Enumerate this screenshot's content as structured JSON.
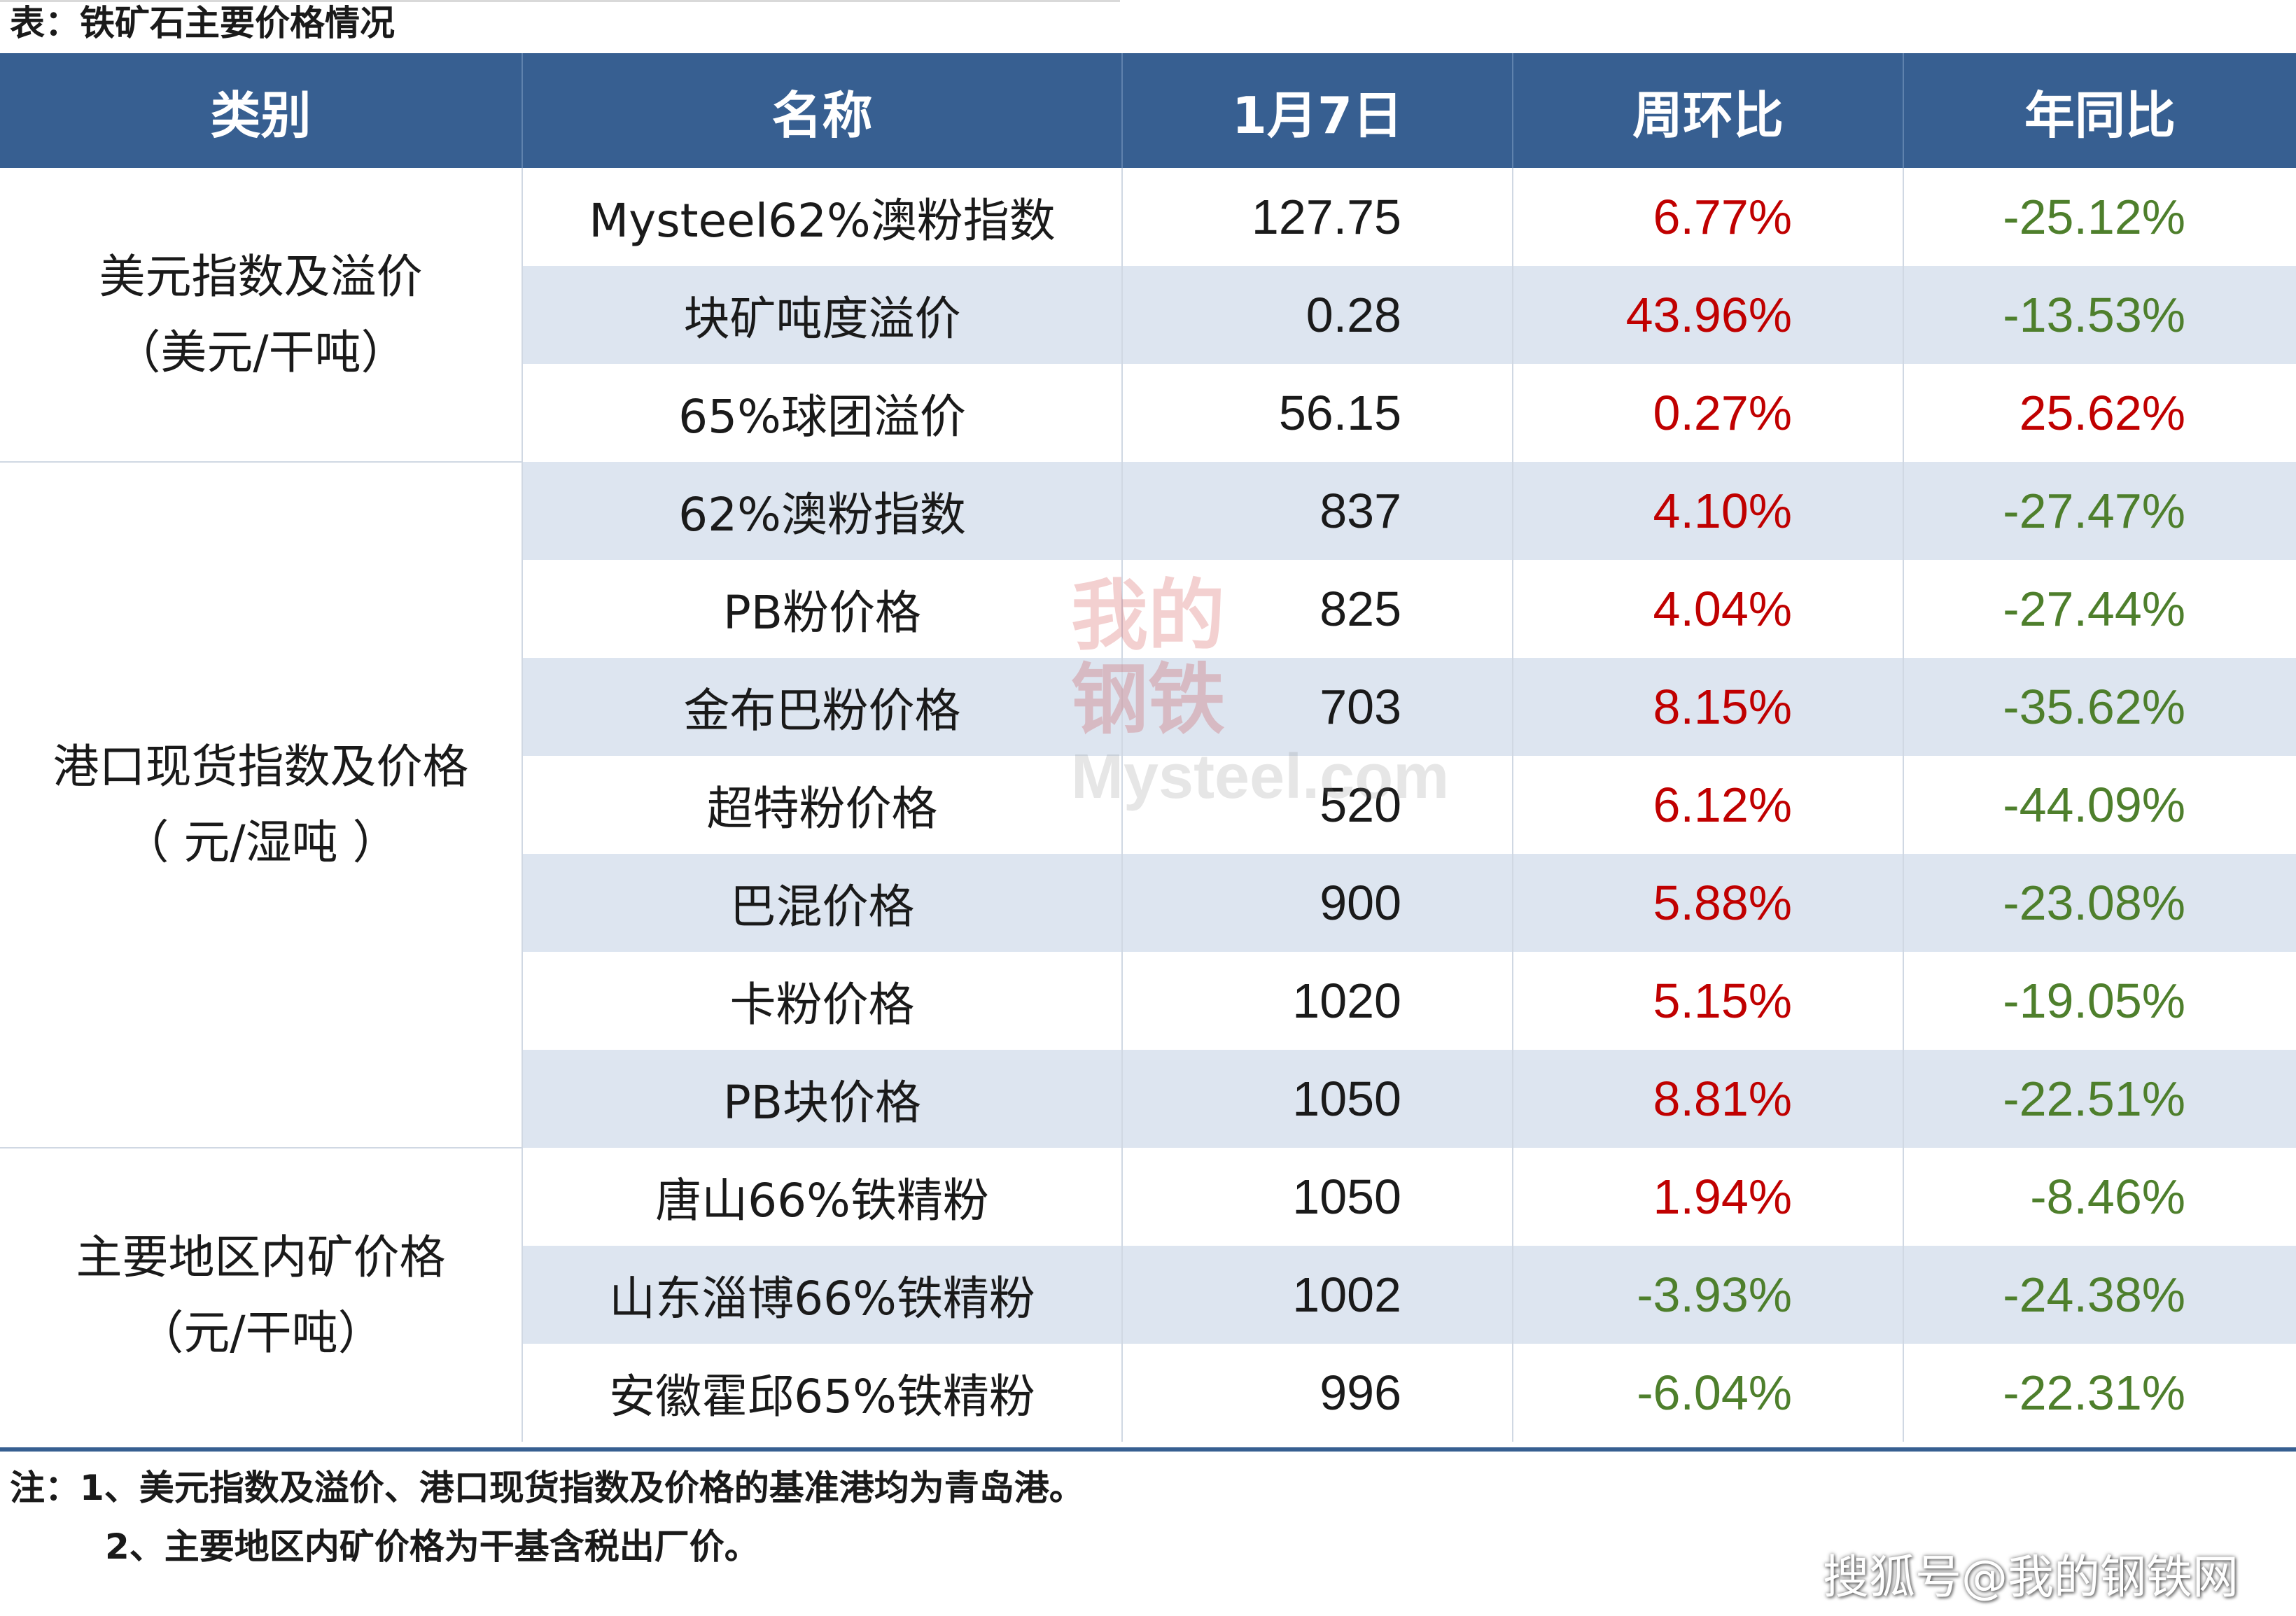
{
  "caption": "表：铁矿石主要价格情况",
  "header": {
    "category": "类别",
    "name": "名称",
    "date": "1月7日",
    "wow": "周环比",
    "yoy": "年同比"
  },
  "groups": [
    {
      "category_line1": "美元指数及溢价",
      "category_line2": "（美元/干吨）",
      "rows": [
        {
          "name": "Mysteel62%澳粉指数",
          "value": "127.75",
          "wow": "6.77%",
          "yoy": "-25.12%"
        },
        {
          "name": "块矿吨度溢价",
          "value": "0.28",
          "wow": "43.96%",
          "yoy": "-13.53%"
        },
        {
          "name": "65%球团溢价",
          "value": "56.15",
          "wow": "0.27%",
          "yoy": "25.62%"
        }
      ]
    },
    {
      "category_line1": "港口现货指数及价格",
      "category_line2": "（ 元/湿吨 ）",
      "rows": [
        {
          "name": "62%澳粉指数",
          "value": "837",
          "wow": "4.10%",
          "yoy": "-27.47%"
        },
        {
          "name": "PB粉价格",
          "value": "825",
          "wow": "4.04%",
          "yoy": "-27.44%"
        },
        {
          "name": "金布巴粉价格",
          "value": "703",
          "wow": "8.15%",
          "yoy": "-35.62%"
        },
        {
          "name": "超特粉价格",
          "value": "520",
          "wow": "6.12%",
          "yoy": "-44.09%"
        },
        {
          "name": "巴混价格",
          "value": "900",
          "wow": "5.88%",
          "yoy": "-23.08%"
        },
        {
          "name": "卡粉价格",
          "value": "1020",
          "wow": "5.15%",
          "yoy": "-19.05%"
        },
        {
          "name": "PB块价格",
          "value": "1050",
          "wow": "8.81%",
          "yoy": "-22.51%"
        }
      ]
    },
    {
      "category_line1": "主要地区内矿价格",
      "category_line2": "（元/干吨）",
      "rows": [
        {
          "name": "唐山66%铁精粉",
          "value": "1050",
          "wow": "1.94%",
          "yoy": "-8.46%"
        },
        {
          "name": "山东淄博66%铁精粉",
          "value": "1002",
          "wow": "-3.93%",
          "yoy": "-24.38%"
        },
        {
          "name": "安徽霍邱65%铁精粉",
          "value": "996",
          "wow": "-6.04%",
          "yoy": "-22.31%"
        }
      ]
    }
  ],
  "notes": {
    "line1": "注：1、美元指数及溢价、港口现货指数及价格的基准港均为青岛港。",
    "line2": "2、主要地区内矿价格为干基含税出厂价。"
  },
  "watermark": {
    "chars": [
      "我",
      "的",
      "钢",
      "铁"
    ],
    "brand": "Mysteel.com"
  },
  "credit": "搜狐号@我的钢铁网",
  "colors": {
    "header_bg": "#375f91",
    "alt_row_bg": "#dde5f0",
    "positive": "#c00000",
    "negative": "#4e7f2c"
  }
}
